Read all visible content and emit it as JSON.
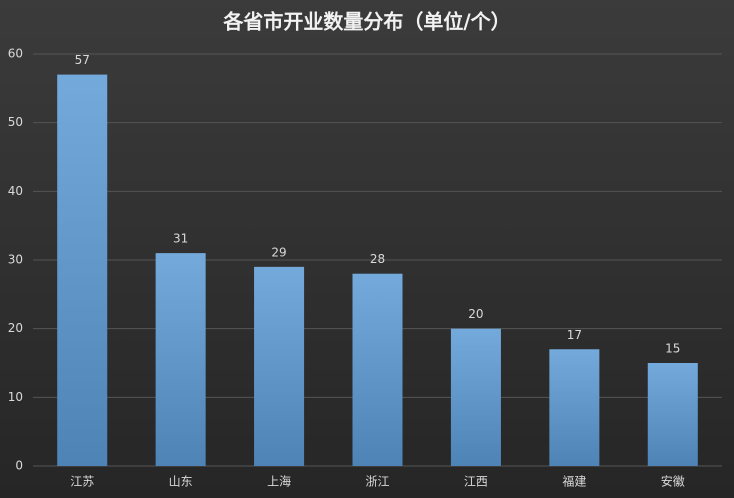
{
  "chart_data": {
    "type": "bar",
    "title": "各省市开业数量分布（单位/个）",
    "categories": [
      "江苏",
      "山东",
      "上海",
      "浙江",
      "江西",
      "福建",
      "安徽"
    ],
    "values": [
      57,
      31,
      29,
      28,
      20,
      17,
      15
    ],
    "color": "#5b9bd5",
    "ylim": [
      0,
      60
    ],
    "yticks": [
      0,
      10,
      20,
      30,
      40,
      50,
      60
    ],
    "grid": true
  }
}
